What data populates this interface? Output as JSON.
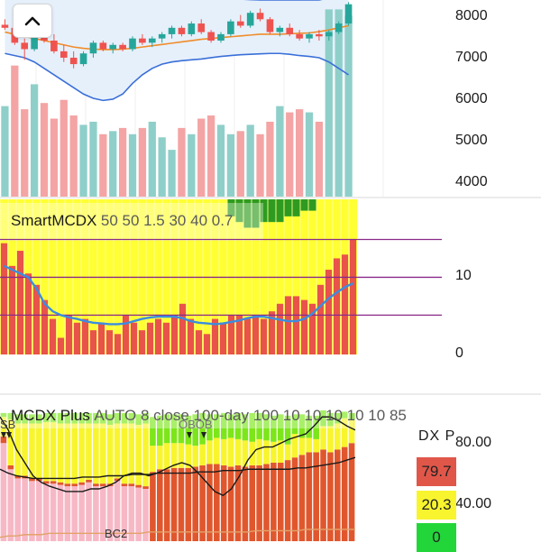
{
  "colors": {
    "up": "#26a69a",
    "down": "#ef5350",
    "vol_up": "#8fcfc9",
    "vol_down": "#f4a4a4",
    "bb_band": "#3a6fd8",
    "bb_basis": "#f08c2a",
    "bb_fill": "#e6f0fb",
    "mcdx_yellow": "#ffff33",
    "mcdx_red": "#e8534a",
    "mcdx_green": "#2e9b20",
    "mcdx_line": "#3b8de0",
    "hline": "#8a2a8a",
    "plus_pink": "#f7b8c6",
    "plus_red": "#e0572e",
    "plus_yellow": "#f8f52e",
    "plus_green": "#7ce61a",
    "plus_black": "#1a1a1a",
    "plus_orange": "#e2a26a",
    "dx_red": "#e0574a",
    "dx_yellow": "#f8f52e",
    "dx_green": "#22d63a"
  },
  "ui": {
    "collapse_icon": "chevron-up-icon"
  },
  "chart_data": [
    {
      "type": "candlestick",
      "title": "",
      "y_axis_ticks": [
        "8000",
        "7000",
        "6000",
        "5000",
        "4000"
      ],
      "ylim": [
        3700,
        8300
      ],
      "candles": [
        [
          7720,
          7850,
          7600,
          7650
        ],
        [
          7650,
          7700,
          7250,
          7300
        ],
        [
          7300,
          7400,
          6900,
          7150
        ],
        [
          7150,
          7700,
          7100,
          7600
        ],
        [
          7600,
          7700,
          7300,
          7350
        ],
        [
          7350,
          7500,
          7050,
          7100
        ],
        [
          7100,
          7250,
          6850,
          6950
        ],
        [
          6950,
          7100,
          6700,
          6800
        ],
        [
          6800,
          7100,
          6750,
          7050
        ],
        [
          7050,
          7350,
          6950,
          7300
        ],
        [
          7300,
          7350,
          7100,
          7150
        ],
        [
          7150,
          7300,
          7050,
          7250
        ],
        [
          7250,
          7300,
          7100,
          7150
        ],
        [
          7150,
          7450,
          7100,
          7400
        ],
        [
          7400,
          7500,
          7250,
          7300
        ],
        [
          7300,
          7450,
          7200,
          7400
        ],
        [
          7400,
          7550,
          7300,
          7500
        ],
        [
          7500,
          7700,
          7400,
          7650
        ],
        [
          7650,
          7700,
          7450,
          7500
        ],
        [
          7500,
          7800,
          7450,
          7750
        ],
        [
          7750,
          7850,
          7500,
          7550
        ],
        [
          7550,
          7600,
          7300,
          7350
        ],
        [
          7350,
          7550,
          7300,
          7500
        ],
        [
          7500,
          7850,
          7450,
          7800
        ],
        [
          7800,
          7950,
          7650,
          7700
        ],
        [
          7700,
          8050,
          7650,
          8000
        ],
        [
          8000,
          8100,
          7800,
          7850
        ],
        [
          7850,
          7900,
          7500,
          7550
        ],
        [
          7550,
          7700,
          7450,
          7650
        ],
        [
          7650,
          7750,
          7450,
          7500
        ],
        [
          7500,
          7600,
          7350,
          7400
        ],
        [
          7400,
          7550,
          7300,
          7500
        ],
        [
          7500,
          7600,
          7350,
          7450
        ],
        [
          7450,
          7600,
          7350,
          7550
        ],
        [
          7550,
          7800,
          7500,
          7750
        ],
        [
          7750,
          8250,
          7700,
          8200
        ]
      ],
      "bb_upper": [
        8500,
        8450,
        8420,
        8400,
        8400,
        8420,
        8450,
        8500,
        8550,
        8580,
        8600,
        8600,
        8580,
        8550,
        8500,
        8450,
        8420,
        8400,
        8380,
        8370,
        8360,
        8350,
        8340,
        8330,
        8320,
        8310,
        8300,
        8300,
        8300,
        8300,
        8300,
        8300,
        8300,
        8350,
        8400,
        8500
      ],
      "bb_basis": [
        7550,
        7500,
        7450,
        7400,
        7350,
        7300,
        7250,
        7200,
        7170,
        7150,
        7140,
        7140,
        7150,
        7170,
        7200,
        7230,
        7260,
        7290,
        7320,
        7350,
        7380,
        7400,
        7420,
        7440,
        7460,
        7480,
        7500,
        7500,
        7500,
        7510,
        7520,
        7530,
        7560,
        7600,
        7650,
        7700
      ],
      "bb_lower": [
        7050,
        7000,
        6950,
        6850,
        6700,
        6550,
        6400,
        6250,
        6100,
        6000,
        5950,
        5980,
        6100,
        6350,
        6550,
        6700,
        6800,
        6850,
        6880,
        6900,
        6920,
        6950,
        6980,
        7000,
        7020,
        7030,
        7040,
        7050,
        7050,
        7030,
        7000,
        6980,
        6950,
        6850,
        6700,
        6550
      ],
      "volume_scale": [
        0,
        6300
      ],
      "volume": [
        2900,
        4200,
        2800,
        3600,
        3000,
        2500,
        3100,
        2600,
        2300,
        2400,
        2000,
        2100,
        2200,
        2000,
        2200,
        2400,
        1900,
        1500,
        2200,
        2000,
        2500,
        2600,
        2300,
        2000,
        2100,
        2300,
        2000,
        2400,
        2900,
        2700,
        2800,
        2700,
        2400,
        6000,
        6000,
        5800
      ],
      "volume_up": [
        true,
        false,
        false,
        true,
        false,
        false,
        false,
        false,
        true,
        true,
        false,
        true,
        false,
        true,
        false,
        true,
        true,
        true,
        false,
        true,
        false,
        false,
        true,
        true,
        false,
        true,
        false,
        false,
        true,
        false,
        false,
        true,
        false,
        true,
        true,
        true
      ]
    },
    {
      "type": "stacked-bar",
      "title": "SmartMCDX",
      "params": "50 50 1.5 30 40 0.7",
      "y_axis_ticks": [
        "10",
        "0"
      ],
      "ylim": [
        -0.2,
        20.3
      ],
      "hlines": [
        15,
        10,
        5
      ],
      "red_bars": [
        14.5,
        11.5,
        13.5,
        10.5,
        9.0,
        7.0,
        4.5,
        2.0,
        5.0,
        4.0,
        4.5,
        3.0,
        4.0,
        3.0,
        2.5,
        5.0,
        4.0,
        3.0,
        4.0,
        4.5,
        4.0,
        5.0,
        6.5,
        4.5,
        3.0,
        2.5,
        4.5,
        4.0,
        5.0,
        5.0,
        4.5,
        5.0,
        4.5,
        5.5,
        6.5,
        7.5,
        7.5,
        7.0,
        6.5,
        9.0,
        11.0,
        12.5,
        13.0,
        15.0
      ],
      "green_bars": [
        0,
        0,
        0,
        0,
        0,
        0,
        0,
        0,
        0,
        0,
        0,
        0,
        0,
        0,
        0,
        0,
        0,
        0,
        0,
        0,
        0,
        0,
        0,
        0,
        0,
        0,
        0,
        0,
        1.5,
        2.0,
        2.5,
        2.5,
        2.0,
        2.0,
        2.0,
        1.5,
        1.5,
        1.0,
        1.0,
        0,
        0,
        0,
        0,
        0
      ],
      "line": [
        11.5,
        11.0,
        10.5,
        10.0,
        8.5,
        6.5,
        5.5,
        5.0,
        4.7,
        4.5,
        4.2,
        4.0,
        3.9,
        3.8,
        3.8,
        3.9,
        4.2,
        4.5,
        4.7,
        4.8,
        4.8,
        4.8,
        4.6,
        4.2,
        4.0,
        3.9,
        3.8,
        3.9,
        4.1,
        4.3,
        4.6,
        4.8,
        4.8,
        4.6,
        4.4,
        4.2,
        4.2,
        4.5,
        5.2,
        6.2,
        7.2,
        8.0,
        8.7,
        9.2
      ]
    },
    {
      "type": "stacked-bar",
      "title": "MCDX Plus",
      "params": "AUTO 8 close 100-day 100 10 10 10 10 10 85",
      "y_axis_ticks": [
        "80.00",
        "40.00"
      ],
      "ylim": [
        0,
        100
      ],
      "annotations": [
        "SB",
        "OBOB",
        "BC2"
      ],
      "bars": [
        [
          75,
          5,
          15,
          3
        ],
        [
          55,
          3,
          35,
          5
        ],
        [
          48,
          2,
          40,
          7
        ],
        [
          48,
          2,
          40,
          7
        ],
        [
          46,
          2,
          42,
          7
        ],
        [
          46,
          2,
          42,
          7
        ],
        [
          44,
          2,
          45,
          7
        ],
        [
          44,
          2,
          45,
          7
        ],
        [
          43,
          2,
          45,
          8
        ],
        [
          42,
          2,
          46,
          8
        ],
        [
          42,
          2,
          46,
          8
        ],
        [
          43,
          2,
          45,
          8
        ],
        [
          45,
          2,
          43,
          8
        ],
        [
          42,
          2,
          46,
          8
        ],
        [
          42,
          2,
          46,
          8
        ],
        [
          42,
          2,
          45,
          8
        ],
        [
          46,
          2,
          42,
          8
        ],
        [
          42,
          2,
          46,
          8
        ],
        [
          42,
          2,
          46,
          8
        ],
        [
          41,
          2,
          46,
          8
        ],
        [
          40,
          2,
          48,
          8
        ],
        [
          0,
          53,
          20,
          22
        ],
        [
          0,
          55,
          18,
          23
        ],
        [
          0,
          55,
          20,
          22
        ],
        [
          0,
          56,
          19,
          22
        ],
        [
          0,
          56,
          19,
          22
        ],
        [
          0,
          56,
          18,
          22
        ],
        [
          0,
          57,
          16,
          24
        ],
        [
          0,
          58,
          16,
          24
        ],
        [
          0,
          59,
          18,
          20
        ],
        [
          0,
          59,
          20,
          18
        ],
        [
          0,
          58,
          20,
          20
        ],
        [
          0,
          57,
          22,
          18
        ],
        [
          0,
          58,
          20,
          20
        ],
        [
          0,
          57,
          20,
          20
        ],
        [
          0,
          58,
          18,
          22
        ],
        [
          0,
          58,
          20,
          20
        ],
        [
          0,
          59,
          18,
          20
        ],
        [
          0,
          60,
          16,
          20
        ],
        [
          0,
          60,
          17,
          20
        ],
        [
          0,
          62,
          12,
          22
        ],
        [
          0,
          64,
          18,
          15
        ],
        [
          0,
          66,
          13,
          18
        ],
        [
          0,
          68,
          11,
          17
        ],
        [
          0,
          68,
          10,
          18
        ],
        [
          0,
          70,
          18,
          12
        ],
        [
          0,
          68,
          20,
          10
        ],
        [
          0,
          70,
          20,
          8
        ],
        [
          0,
          72,
          22,
          5
        ],
        [
          0,
          75,
          18,
          5
        ]
      ],
      "line_black": [
        95,
        85,
        70,
        60,
        50,
        45,
        42,
        40,
        38,
        38,
        38,
        40,
        40,
        42,
        45,
        50,
        52,
        52,
        50,
        52,
        55,
        58,
        60,
        58,
        52,
        45,
        38,
        35,
        40,
        50,
        62,
        70,
        72,
        72,
        75,
        78,
        80,
        82,
        88,
        95,
        95,
        92,
        88,
        85
      ],
      "line_black2": [
        55,
        52,
        50,
        49,
        48,
        48,
        48,
        48,
        48,
        48,
        49,
        49,
        49,
        50,
        50,
        50,
        51,
        51,
        51,
        52,
        52,
        52,
        52,
        52,
        53,
        53,
        53,
        54,
        54,
        54,
        55,
        55,
        55,
        55,
        55,
        55,
        56,
        56,
        57,
        58,
        59,
        60,
        62,
        64
      ],
      "line_orange": [
        3,
        4,
        4,
        5,
        5,
        5,
        6,
        6,
        6,
        6,
        6,
        6,
        6,
        6,
        6,
        6,
        6,
        6,
        7,
        7,
        7,
        7,
        7,
        7,
        7,
        7,
        7,
        7,
        7,
        7,
        7,
        8,
        8,
        8,
        8,
        8,
        8,
        9,
        9,
        9,
        9,
        9,
        9,
        9
      ]
    }
  ],
  "dx_panel": {
    "header": "DX P",
    "red_value": "79.7",
    "yellow_value": "20.3",
    "green_value": "0"
  }
}
